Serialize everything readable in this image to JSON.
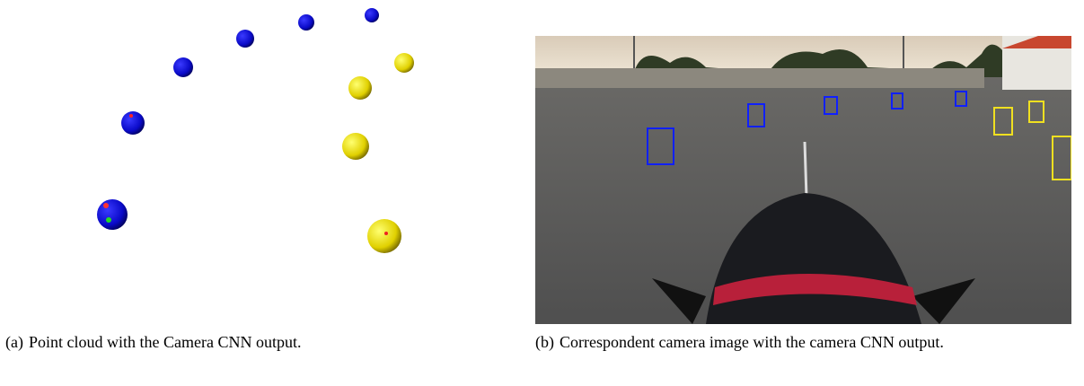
{
  "figures": [
    {
      "label": "(a)",
      "caption": "Point cloud with the Camera CNN output."
    },
    {
      "label": "(b)",
      "caption": "Correspondent camera image with the camera CNN output."
    }
  ]
}
